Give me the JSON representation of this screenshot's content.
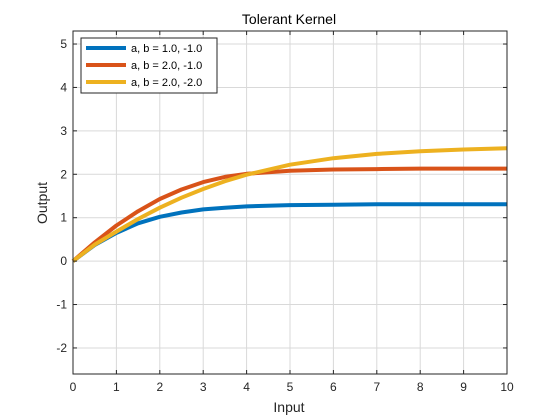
{
  "chart_data": {
    "type": "line",
    "title": "Tolerant Kernel",
    "xlabel": "Input",
    "ylabel": "Output",
    "xlim": [
      0,
      10
    ],
    "ylim": [
      -2.6,
      5.3
    ],
    "xticks": [
      "0",
      "1",
      "2",
      "3",
      "4",
      "5",
      "6",
      "7",
      "8",
      "9",
      "10"
    ],
    "yticks": [
      "-2",
      "-1",
      "0",
      "1",
      "2",
      "3",
      "4",
      "5"
    ],
    "grid": true,
    "legend_position": "top-left",
    "series": [
      {
        "name": "a, b = 1.0, -1.0",
        "color": "#0072BD",
        "x": [
          0,
          0.5,
          1,
          1.5,
          2,
          2.5,
          3,
          3.5,
          4,
          5,
          6,
          7,
          8,
          9,
          10
        ],
        "y": [
          0,
          0.37,
          0.65,
          0.87,
          1.02,
          1.12,
          1.19,
          1.23,
          1.26,
          1.29,
          1.3,
          1.31,
          1.31,
          1.31,
          1.31
        ]
      },
      {
        "name": "a, b = 2.0, -1.0",
        "color": "#D95319",
        "x": [
          0,
          0.5,
          1,
          1.5,
          2,
          2.5,
          3,
          3.5,
          4,
          5,
          6,
          7,
          8,
          9,
          10
        ],
        "y": [
          0,
          0.43,
          0.82,
          1.15,
          1.43,
          1.65,
          1.82,
          1.94,
          2.01,
          2.08,
          2.11,
          2.12,
          2.13,
          2.13,
          2.13
        ]
      },
      {
        "name": "a, b = 2.0, -2.0",
        "color": "#EDB120",
        "x": [
          0,
          0.5,
          1,
          1.5,
          2,
          2.5,
          3,
          3.5,
          4,
          5,
          6,
          7,
          8,
          9,
          10
        ],
        "y": [
          0,
          0.38,
          0.68,
          0.97,
          1.23,
          1.46,
          1.66,
          1.84,
          1.99,
          2.22,
          2.37,
          2.47,
          2.53,
          2.57,
          2.6
        ]
      }
    ]
  }
}
